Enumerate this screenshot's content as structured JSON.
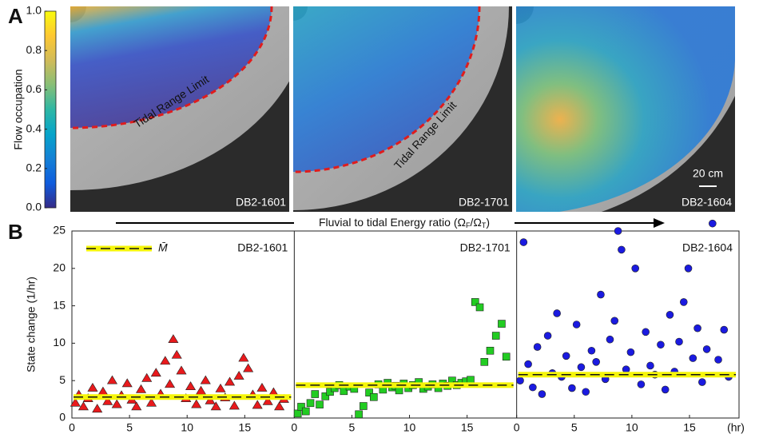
{
  "chart_data": [
    {
      "type": "colormap",
      "panel_label": "A",
      "colorbar_label": "Flow occupation",
      "ylim": [
        0,
        1
      ],
      "yticks": [
        {
          "value": 0,
          "label": "0.0"
        },
        {
          "value": 0.2,
          "label": "0.2"
        },
        {
          "value": 0.4,
          "label": "0.4"
        },
        {
          "value": 0.6,
          "label": "0.6"
        },
        {
          "value": 0.8,
          "label": "0.8"
        },
        {
          "value": 1,
          "label": "1.0"
        }
      ],
      "colors": [
        "#352a87",
        "#0f5cdd",
        "#1481d6",
        "#06a4ca",
        "#2eb7a4",
        "#87bf77",
        "#d1bb59",
        "#fec832",
        "#f9fb0e"
      ],
      "images": [
        "DB2-1601",
        "DB2-1701",
        "DB2-1604"
      ],
      "limit_label": "Tidal Range Limit",
      "scale_label": "20 cm"
    },
    {
      "type": "scatter",
      "panel_label": "B",
      "arrow_label": [
        "Fluvial to tidal Energy ratio (Ω",
        "F",
        "/Ω",
        "T",
        ")"
      ],
      "y_label": "State change (1/hr)",
      "x_unit": "(hr)",
      "legend_label": "M̄",
      "xlim": [
        0,
        19.3
      ],
      "xticks": [
        0,
        5,
        10,
        15
      ],
      "ylim": [
        0,
        25
      ],
      "yticks": [
        0,
        5,
        10,
        15,
        20,
        25
      ],
      "series": [
        {
          "name": "DB2-1601",
          "color": "#e8191c",
          "marker": "triangle",
          "mean": 2.8,
          "x": [
            0.3,
            0.6,
            1.0,
            1.4,
            1.8,
            2.2,
            2.7,
            3.1,
            3.5,
            3.9,
            4.3,
            4.8,
            5.2,
            5.6,
            6.0,
            6.5,
            6.9,
            7.3,
            7.7,
            8.1,
            8.5,
            8.8,
            9.1,
            9.5,
            9.9,
            10.3,
            10.8,
            11.2,
            11.6,
            12.0,
            12.5,
            12.9,
            13.3,
            13.7,
            14.1,
            14.5,
            14.9,
            15.3,
            15.7,
            16.1,
            16.5,
            17.0,
            17.5,
            18.0,
            18.4
          ],
          "values": [
            2.0,
            3.1,
            1.5,
            2.6,
            4.0,
            1.2,
            3.5,
            2.2,
            5.0,
            1.8,
            3.0,
            4.6,
            2.4,
            1.5,
            3.8,
            5.3,
            2.0,
            6.0,
            3.2,
            7.6,
            4.5,
            10.5,
            8.4,
            6.3,
            2.6,
            4.2,
            1.8,
            3.6,
            5.0,
            2.3,
            1.5,
            3.9,
            2.7,
            4.8,
            1.6,
            5.6,
            8.0,
            6.6,
            3.1,
            1.7,
            4.0,
            2.2,
            3.4,
            1.5,
            2.5
          ]
        },
        {
          "name": "DB2-1701",
          "color": "#22cc22",
          "marker": "square",
          "mean": 4.4,
          "x": [
            0.3,
            0.6,
            1.0,
            1.4,
            1.8,
            2.2,
            2.7,
            3.1,
            3.5,
            3.9,
            4.3,
            4.8,
            5.2,
            5.6,
            6.0,
            6.5,
            6.9,
            7.3,
            7.7,
            8.1,
            8.5,
            8.8,
            9.1,
            9.5,
            9.9,
            10.3,
            10.8,
            11.2,
            11.6,
            12.0,
            12.5,
            12.9,
            13.3,
            13.7,
            14.1,
            14.5,
            14.9,
            15.3,
            15.7,
            16.1,
            16.5,
            17.0,
            17.5,
            18.0,
            18.4
          ],
          "values": [
            0.6,
            1.5,
            0.9,
            2.0,
            3.2,
            1.8,
            2.9,
            3.5,
            4.0,
            4.4,
            3.6,
            4.2,
            3.9,
            0.5,
            1.6,
            3.4,
            2.8,
            4.5,
            3.8,
            4.7,
            4.1,
            4.3,
            3.7,
            4.6,
            4.0,
            4.4,
            4.8,
            3.9,
            4.2,
            4.5,
            4.0,
            4.6,
            4.3,
            5.0,
            4.4,
            4.7,
            4.9,
            5.1,
            15.5,
            14.8,
            7.5,
            9.0,
            11.0,
            12.6,
            8.2
          ]
        },
        {
          "name": "DB2-1604",
          "color": "#1a1ae0",
          "marker": "circle",
          "mean": 5.8,
          "x": [
            0.3,
            0.6,
            1.0,
            1.4,
            1.8,
            2.2,
            2.7,
            3.1,
            3.5,
            3.9,
            4.3,
            4.8,
            5.2,
            5.6,
            6.0,
            6.5,
            6.9,
            7.3,
            7.7,
            8.1,
            8.5,
            8.8,
            9.1,
            9.5,
            9.9,
            10.3,
            10.8,
            11.2,
            11.6,
            12.0,
            12.5,
            12.9,
            13.3,
            13.7,
            14.1,
            14.5,
            14.9,
            15.3,
            15.7,
            16.1,
            16.5,
            17.0,
            17.5,
            18.0,
            18.4
          ],
          "values": [
            5.0,
            23.5,
            7.2,
            4.1,
            9.5,
            3.2,
            11.0,
            6.0,
            14.0,
            5.5,
            8.3,
            4.0,
            12.5,
            6.8,
            3.5,
            9.0,
            7.5,
            16.5,
            5.2,
            10.5,
            13.0,
            25.0,
            22.5,
            6.5,
            8.8,
            20.0,
            4.5,
            11.5,
            7.0,
            5.8,
            9.8,
            3.8,
            13.8,
            6.2,
            10.2,
            15.5,
            20.0,
            8.0,
            12.0,
            4.8,
            9.2,
            26.0,
            7.8,
            11.8,
            5.5
          ]
        }
      ]
    }
  ]
}
